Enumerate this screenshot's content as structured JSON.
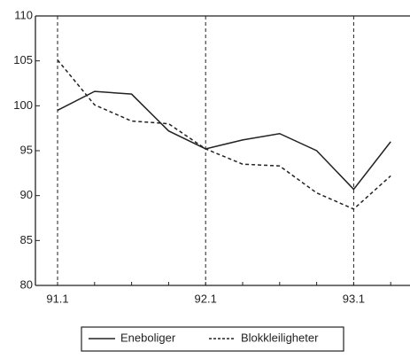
{
  "chart_data": {
    "type": "line",
    "categories": [
      "91.1",
      null,
      null,
      null,
      "92.1",
      null,
      null,
      null,
      "93.1",
      null
    ],
    "series": [
      {
        "name": "Eneboliger",
        "color": "#222222",
        "dashed": false,
        "values": [
          99.5,
          101.6,
          101.3,
          97.2,
          95.2,
          96.2,
          96.9,
          95.0,
          90.7,
          96.0
        ]
      },
      {
        "name": "Blokkleiligheter",
        "color": "#222222",
        "dashed": true,
        "values": [
          105.1,
          100.1,
          98.3,
          98.0,
          95.2,
          93.5,
          93.3,
          90.3,
          88.5,
          92.2
        ]
      }
    ],
    "ylim": [
      80,
      110
    ],
    "yticks": [
      80,
      85,
      90,
      95,
      100,
      105,
      110
    ],
    "category_gridlines": true,
    "legend": "bottom"
  }
}
